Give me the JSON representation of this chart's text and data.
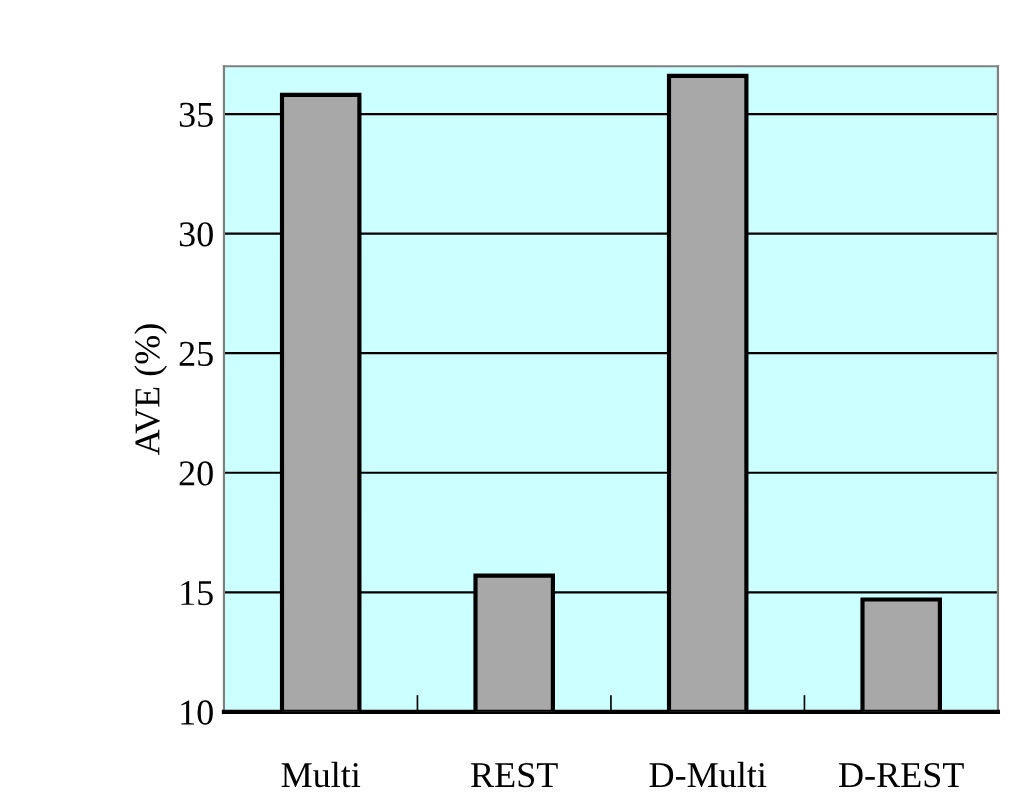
{
  "chart_data": {
    "type": "bar",
    "ylabel": "AVE (%)",
    "categories": [
      "Multi",
      "REST",
      "D-Multi",
      "D-REST"
    ],
    "values": [
      35.8,
      15.7,
      36.6,
      14.7
    ],
    "color": "#a8a8a8",
    "ylim": [
      10,
      37
    ],
    "yticks": [
      10,
      15,
      20,
      25,
      30,
      35
    ],
    "grid": "y",
    "legend": false
  }
}
